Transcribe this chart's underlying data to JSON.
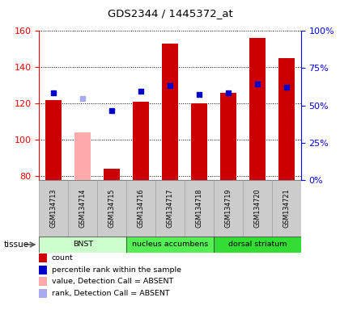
{
  "title": "GDS2344 / 1445372_at",
  "samples": [
    "GSM134713",
    "GSM134714",
    "GSM134715",
    "GSM134716",
    "GSM134717",
    "GSM134718",
    "GSM134719",
    "GSM134720",
    "GSM134721"
  ],
  "count_values": [
    122,
    null,
    84,
    121,
    153,
    120,
    126,
    156,
    145
  ],
  "count_absent": [
    null,
    104,
    null,
    null,
    null,
    null,
    null,
    null,
    null
  ],
  "rank_values": [
    126,
    null,
    116,
    127,
    130,
    125,
    126,
    131,
    129
  ],
  "rank_absent": [
    null,
    123,
    null,
    null,
    null,
    null,
    null,
    null,
    null
  ],
  "ylim_left": [
    78,
    160
  ],
  "ylim_right": [
    0,
    100
  ],
  "yticks_left": [
    80,
    100,
    120,
    140,
    160
  ],
  "yticks_right": [
    0,
    25,
    50,
    75,
    100
  ],
  "ytick_labels_right": [
    "0%",
    "25%",
    "50%",
    "75%",
    "100%"
  ],
  "grid_y": [
    80,
    100,
    120,
    140,
    160
  ],
  "tissue_groups": [
    {
      "label": "BNST",
      "start": 0,
      "end": 3,
      "color": "#ccffcc"
    },
    {
      "label": "nucleus accumbens",
      "start": 3,
      "end": 6,
      "color": "#55ee55"
    },
    {
      "label": "dorsal striatum",
      "start": 6,
      "end": 9,
      "color": "#33dd33"
    }
  ],
  "bar_color_present": "#cc0000",
  "bar_color_absent": "#ffaaaa",
  "dot_color_present": "#0000cc",
  "dot_color_absent": "#aaaaee",
  "bar_width": 0.55,
  "legend_items": [
    {
      "color": "#cc0000",
      "label": "count"
    },
    {
      "color": "#0000cc",
      "label": "percentile rank within the sample"
    },
    {
      "color": "#ffaaaa",
      "label": "value, Detection Call = ABSENT"
    },
    {
      "color": "#aaaaee",
      "label": "rank, Detection Call = ABSENT"
    }
  ],
  "tissue_label": "tissue",
  "background_color": "#ffffff"
}
